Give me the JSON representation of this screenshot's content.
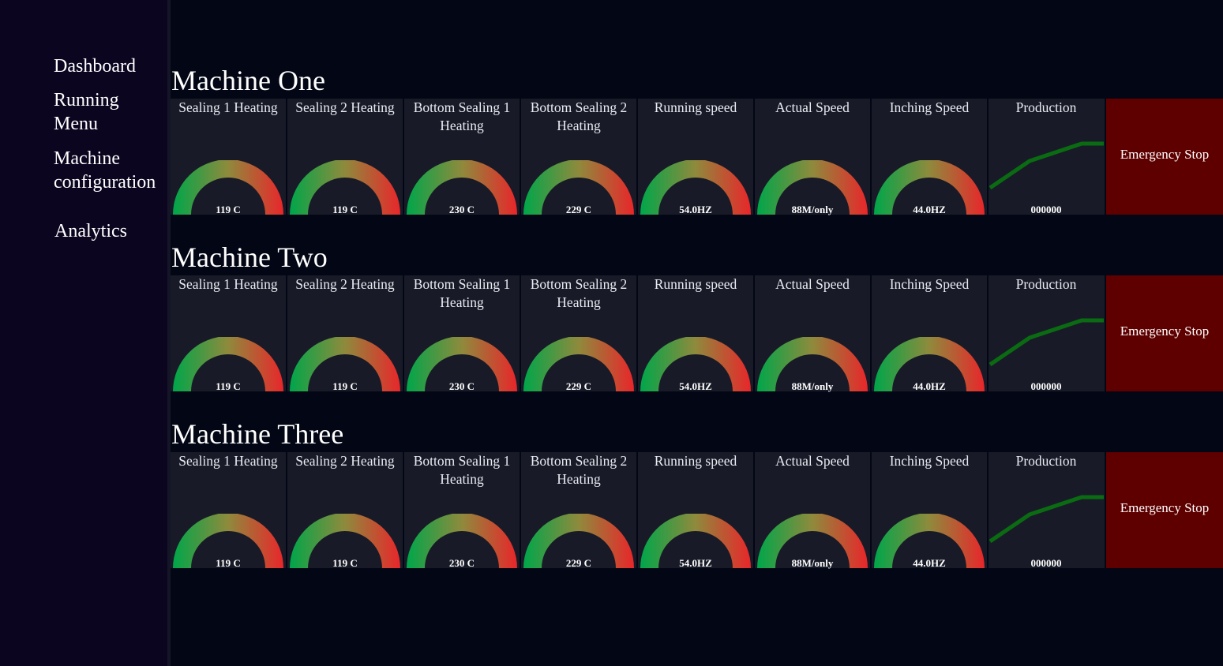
{
  "sidebar": {
    "items": [
      {
        "label": "Dashboard"
      },
      {
        "label": "Running Menu"
      },
      {
        "label": "Machine configuration"
      },
      {
        "label": "Analytics"
      }
    ]
  },
  "panel_titles": {
    "sealing1": "Sealing 1 Heating",
    "sealing2": "Sealing 2 Heating",
    "bottom1": "Bottom Sealing 1 Heating",
    "bottom2": "Bottom Sealing 2 Heating",
    "running": "Running speed",
    "actual": "Actual Speed",
    "inching": "Inching Speed",
    "production": "Production",
    "estop": "Emergency Stop"
  },
  "gauge_colors": {
    "start": "#00a64a",
    "mid": "#8f8a3c",
    "end": "#e8262a"
  },
  "production_line_color": "#0a6b12",
  "machines": [
    {
      "title": "Machine One",
      "values": {
        "sealing1": "119 C",
        "sealing2": "119 C",
        "bottom1": "230 C",
        "bottom2": "229 C",
        "running": "54.0HZ",
        "actual": "88M/only",
        "inching": "44.0HZ",
        "production": "000000"
      }
    },
    {
      "title": "Machine Two",
      "values": {
        "sealing1": "119 C",
        "sealing2": "119 C",
        "bottom1": "230 C",
        "bottom2": "229 C",
        "running": "54.0HZ",
        "actual": "88M/only",
        "inching": "44.0HZ",
        "production": "000000"
      }
    },
    {
      "title": "Machine Three",
      "values": {
        "sealing1": "119 C",
        "sealing2": "119 C",
        "bottom1": "230 C",
        "bottom2": "229 C",
        "running": "54.0HZ",
        "actual": "88M/only",
        "inching": "44.0HZ",
        "production": "000000"
      }
    }
  ]
}
